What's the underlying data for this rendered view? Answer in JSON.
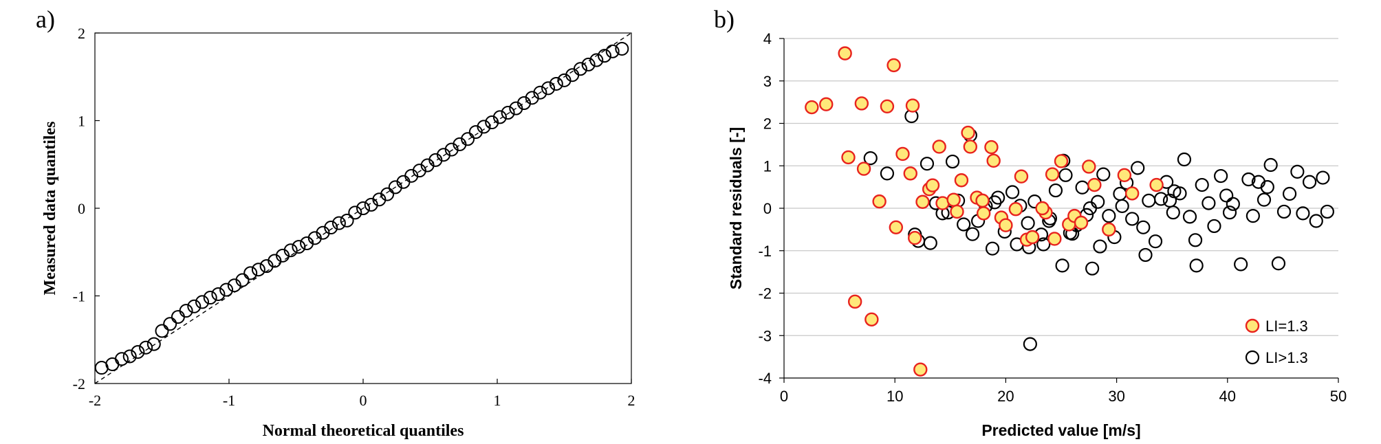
{
  "chart_data": [
    {
      "panel_label": "a)",
      "type": "scatter",
      "xlabel": "Normal theoretical quantiles",
      "ylabel": "Measured data quantiles",
      "xlim": [
        -2,
        2
      ],
      "ylim": [
        -2,
        2
      ],
      "xticks": [
        "-2",
        "-1",
        "0",
        "1",
        "2"
      ],
      "yticks": [
        "-2",
        "-1",
        "0",
        "1",
        "2"
      ],
      "grid": false,
      "reference_line": {
        "style": "dashed",
        "from": [
          -2,
          -2
        ],
        "to": [
          2,
          2
        ]
      },
      "series": [
        {
          "marker": "open-circle",
          "color": "#000000",
          "x": [
            -1.95,
            -1.87,
            -1.8,
            -1.74,
            -1.68,
            -1.62,
            -1.56,
            -1.5,
            -1.44,
            -1.38,
            -1.32,
            -1.26,
            -1.2,
            -1.14,
            -1.08,
            -1.02,
            -0.96,
            -0.9,
            -0.84,
            -0.78,
            -0.72,
            -0.66,
            -0.6,
            -0.54,
            -0.48,
            -0.42,
            -0.36,
            -0.3,
            -0.24,
            -0.18,
            -0.12,
            -0.06,
            0.0,
            0.06,
            0.12,
            0.18,
            0.24,
            0.3,
            0.36,
            0.42,
            0.48,
            0.54,
            0.6,
            0.66,
            0.72,
            0.78,
            0.84,
            0.9,
            0.96,
            1.02,
            1.08,
            1.14,
            1.2,
            1.26,
            1.32,
            1.38,
            1.44,
            1.5,
            1.56,
            1.62,
            1.68,
            1.74,
            1.8,
            1.86,
            1.93
          ],
          "y": [
            -1.82,
            -1.78,
            -1.72,
            -1.69,
            -1.64,
            -1.59,
            -1.55,
            -1.4,
            -1.32,
            -1.24,
            -1.17,
            -1.12,
            -1.07,
            -1.02,
            -0.98,
            -0.93,
            -0.88,
            -0.82,
            -0.74,
            -0.7,
            -0.66,
            -0.6,
            -0.54,
            -0.48,
            -0.44,
            -0.4,
            -0.34,
            -0.28,
            -0.22,
            -0.17,
            -0.14,
            -0.05,
            0.0,
            0.04,
            0.1,
            0.16,
            0.24,
            0.3,
            0.37,
            0.43,
            0.49,
            0.55,
            0.61,
            0.67,
            0.73,
            0.79,
            0.87,
            0.93,
            0.98,
            1.04,
            1.09,
            1.14,
            1.2,
            1.26,
            1.32,
            1.37,
            1.42,
            1.46,
            1.52,
            1.59,
            1.64,
            1.69,
            1.74,
            1.79,
            1.82
          ]
        }
      ]
    },
    {
      "panel_label": "b)",
      "type": "scatter",
      "xlabel": "Predicted value [m/s]",
      "ylabel": "Standard residuals [-]",
      "xlim": [
        0,
        50
      ],
      "ylim": [
        -4,
        4
      ],
      "xticks": [
        "0",
        "10",
        "20",
        "30",
        "40",
        "50"
      ],
      "yticks": [
        "4",
        "3",
        "2",
        "1",
        "0",
        "-1",
        "-2",
        "-3",
        "-4"
      ],
      "grid": true,
      "legend": "bottom-right",
      "series": [
        {
          "name": "LI=1.3",
          "marker": "filled-circle",
          "fill": "#ffe87a",
          "stroke": "#e8231e",
          "x": [
            2.5,
            3.8,
            5.5,
            5.8,
            6.4,
            7.0,
            7.2,
            7.9,
            8.6,
            9.3,
            9.9,
            10.1,
            10.7,
            11.4,
            11.6,
            11.8,
            12.3,
            12.5,
            13.1,
            13.4,
            14.0,
            14.3,
            15.3,
            15.6,
            16.0,
            16.6,
            16.8,
            17.4,
            17.9,
            18.0,
            18.7,
            18.9,
            19.6,
            20.0,
            20.9,
            21.4,
            21.9,
            22.4,
            23.6,
            24.2,
            24.4,
            25.0,
            25.7,
            26.2,
            26.8,
            27.5,
            28.0,
            29.3,
            30.7,
            31.4,
            33.6,
            23.3
          ],
          "y": [
            2.38,
            2.45,
            3.65,
            1.2,
            -2.2,
            2.47,
            0.93,
            -2.62,
            0.16,
            2.4,
            3.37,
            -0.45,
            1.28,
            0.82,
            2.42,
            -0.7,
            -3.8,
            0.15,
            0.45,
            0.54,
            1.45,
            0.12,
            0.2,
            -0.08,
            0.66,
            1.78,
            1.45,
            0.25,
            0.18,
            -0.12,
            1.44,
            1.12,
            -0.22,
            -0.4,
            -0.02,
            0.75,
            -0.74,
            -0.68,
            -0.1,
            0.8,
            -0.72,
            1.11,
            -0.38,
            -0.18,
            -0.34,
            0.98,
            0.55,
            -0.5,
            0.78,
            0.35,
            0.55,
            0.0
          ]
        },
        {
          "name": "LI>1.3",
          "marker": "open-circle",
          "color": "#000000",
          "x": [
            7.8,
            9.3,
            11.5,
            11.8,
            12.1,
            12.9,
            13.2,
            13.7,
            14.3,
            15.2,
            15.7,
            16.2,
            16.8,
            17.0,
            17.5,
            18.2,
            18.8,
            19.3,
            19.9,
            20.6,
            21.3,
            22.1,
            22.2,
            22.6,
            23.2,
            23.9,
            24.5,
            25.1,
            25.4,
            25.8,
            26.4,
            26.9,
            27.3,
            27.8,
            28.3,
            28.8,
            29.3,
            29.8,
            30.3,
            30.9,
            31.4,
            31.9,
            32.4,
            32.9,
            33.5,
            34.0,
            34.5,
            35.1,
            35.7,
            36.1,
            36.6,
            37.2,
            37.7,
            38.3,
            38.8,
            39.4,
            39.9,
            40.5,
            41.2,
            41.9,
            42.3,
            42.8,
            43.3,
            43.9,
            44.6,
            45.1,
            45.6,
            46.3,
            46.8,
            47.4,
            48.0,
            48.6,
            49.0,
            14.8,
            19.0,
            24.0,
            26.0,
            28.5,
            30.5,
            32.6,
            35.2,
            37.1,
            40.2,
            43.6,
            25.2,
            27.6,
            22.0,
            34.8,
            21.0,
            23.4
          ],
          "y": [
            1.18,
            0.82,
            2.17,
            -0.62,
            -0.77,
            1.05,
            -0.82,
            0.12,
            -0.12,
            1.1,
            0.18,
            -0.38,
            1.72,
            -0.61,
            -0.3,
            0.05,
            -0.95,
            0.25,
            -0.55,
            0.38,
            0.06,
            -0.92,
            -3.2,
            0.16,
            -0.62,
            -0.3,
            0.42,
            -1.35,
            0.78,
            -0.58,
            -0.4,
            0.49,
            -0.16,
            -1.42,
            0.15,
            0.8,
            -0.18,
            -0.68,
            0.34,
            0.6,
            -0.25,
            0.95,
            -0.45,
            0.18,
            -0.78,
            0.22,
            0.62,
            -0.1,
            0.35,
            1.15,
            -0.2,
            -1.35,
            0.55,
            0.12,
            -0.42,
            0.76,
            0.3,
            0.1,
            -1.32,
            0.68,
            -0.18,
            0.62,
            0.2,
            1.02,
            -1.3,
            -0.08,
            0.34,
            0.86,
            -0.12,
            0.62,
            -0.3,
            0.72,
            -0.08,
            -0.1,
            0.14,
            -0.24,
            -0.6,
            -0.9,
            0.05,
            -1.1,
            0.4,
            -0.75,
            -0.1,
            0.5,
            1.12,
            0.0,
            -0.35,
            0.18,
            -0.85,
            -0.85
          ]
        }
      ]
    }
  ]
}
